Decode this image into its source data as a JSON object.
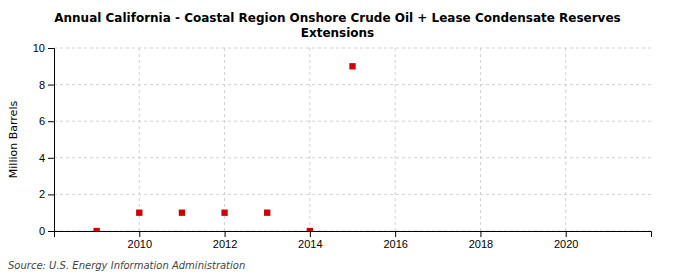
{
  "chart_data": {
    "type": "scatter",
    "title": "Annual California - Coastal Region Onshore Crude Oil + Lease Condensate Reserves\nExtensions",
    "ylabel": "Million Barrels",
    "annotations": [
      "Source: U.S. Energy Information Administration"
    ],
    "x": [
      2009,
      2010,
      2011,
      2012,
      2013,
      2014,
      2015
    ],
    "values": [
      0.0,
      1.0,
      1.0,
      1.0,
      1.0,
      0.0,
      9.0
    ],
    "color": "#cc0000",
    "marker": "square",
    "xlim": [
      2008.0,
      2022.0
    ],
    "ylim": [
      0,
      10
    ],
    "xticks": [
      2010,
      2012,
      2014,
      2016,
      2018,
      2020
    ],
    "yticks": [
      0,
      2,
      4,
      6,
      8,
      10
    ],
    "grid": true
  }
}
